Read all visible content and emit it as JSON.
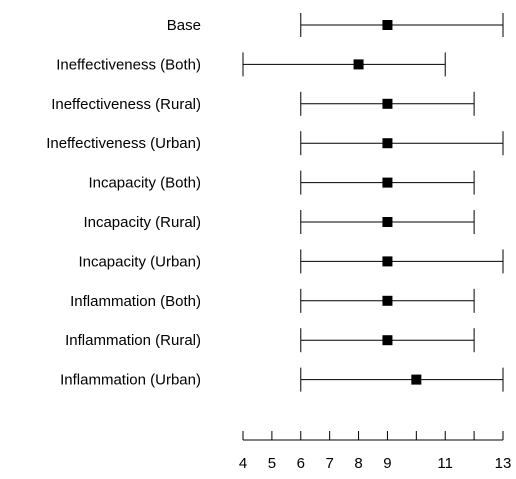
{
  "chart_data": {
    "type": "forest",
    "title": "",
    "xlabel": "",
    "ylabel": "",
    "xlim": [
      4,
      13
    ],
    "x_ticks": [
      4,
      5,
      6,
      7,
      8,
      9,
      10,
      11,
      12,
      13
    ],
    "x_tick_labels": [
      "4",
      "5",
      "6",
      "7",
      "8",
      "9",
      "",
      "11",
      "",
      "13"
    ],
    "grid": false,
    "legend": "none",
    "rows": [
      {
        "label": "Base",
        "estimate": 9,
        "low": 6,
        "high": 13
      },
      {
        "label": "Ineffectiveness (Both)",
        "estimate": 8,
        "low": 4,
        "high": 11
      },
      {
        "label": "Ineffectiveness (Rural)",
        "estimate": 9,
        "low": 6,
        "high": 12
      },
      {
        "label": "Ineffectiveness (Urban)",
        "estimate": 9,
        "low": 6,
        "high": 13
      },
      {
        "label": "Incapacity (Both)",
        "estimate": 9,
        "low": 6,
        "high": 12
      },
      {
        "label": "Incapacity (Rural)",
        "estimate": 9,
        "low": 6,
        "high": 12
      },
      {
        "label": "Incapacity (Urban)",
        "estimate": 9,
        "low": 6,
        "high": 13
      },
      {
        "label": "Inflammation (Both)",
        "estimate": 9,
        "low": 6,
        "high": 12
      },
      {
        "label": "Inflammation (Rural)",
        "estimate": 9,
        "low": 6,
        "high": 12
      },
      {
        "label": "Inflammation (Urban)",
        "estimate": 10,
        "low": 6,
        "high": 13
      }
    ],
    "colors": {
      "marker": "#000000",
      "line": "#000000"
    }
  }
}
